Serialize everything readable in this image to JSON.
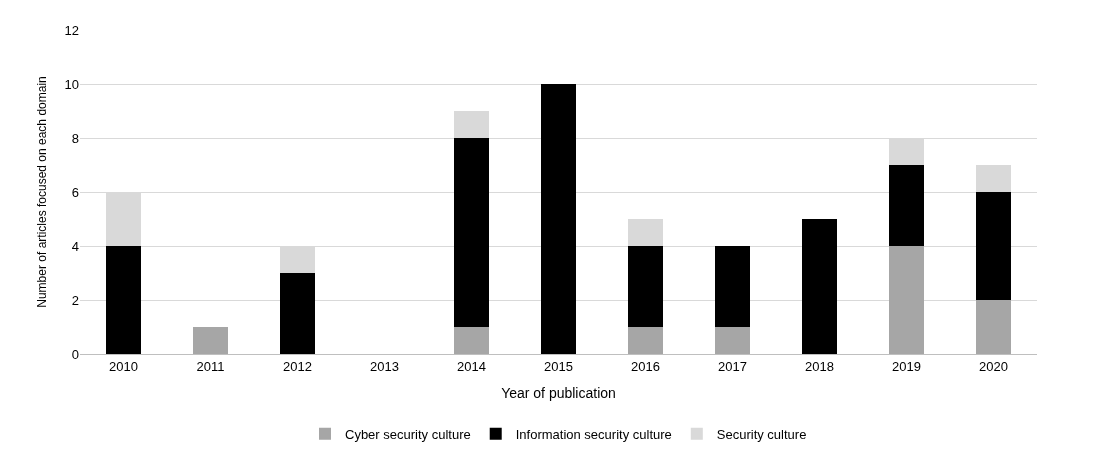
{
  "chart_data": {
    "type": "bar",
    "stacked": true,
    "xlabel": "Year of publication",
    "ylabel": "Number of articles focused on each domain",
    "categories": [
      "2010",
      "2011",
      "2012",
      "2013",
      "2014",
      "2015",
      "2016",
      "2017",
      "2018",
      "2019",
      "2020"
    ],
    "series": [
      {
        "name": "Cyber security culture",
        "color": "#a6a6a6",
        "values": [
          0,
          1,
          0,
          0,
          1,
          0,
          1,
          1,
          0,
          4,
          2
        ]
      },
      {
        "name": "Information security culture",
        "color": "#000000",
        "values": [
          4,
          0,
          3,
          0,
          7,
          10,
          3,
          3,
          5,
          3,
          4
        ]
      },
      {
        "name": "Security culture",
        "color": "#d9d9d9",
        "values": [
          2,
          0,
          1,
          0,
          1,
          0,
          1,
          0,
          0,
          1,
          1
        ]
      }
    ],
    "ylim": [
      0,
      12
    ],
    "yticks": [
      0,
      2,
      4,
      6,
      8,
      10,
      12
    ],
    "grid": "y",
    "legend": "bottom"
  }
}
